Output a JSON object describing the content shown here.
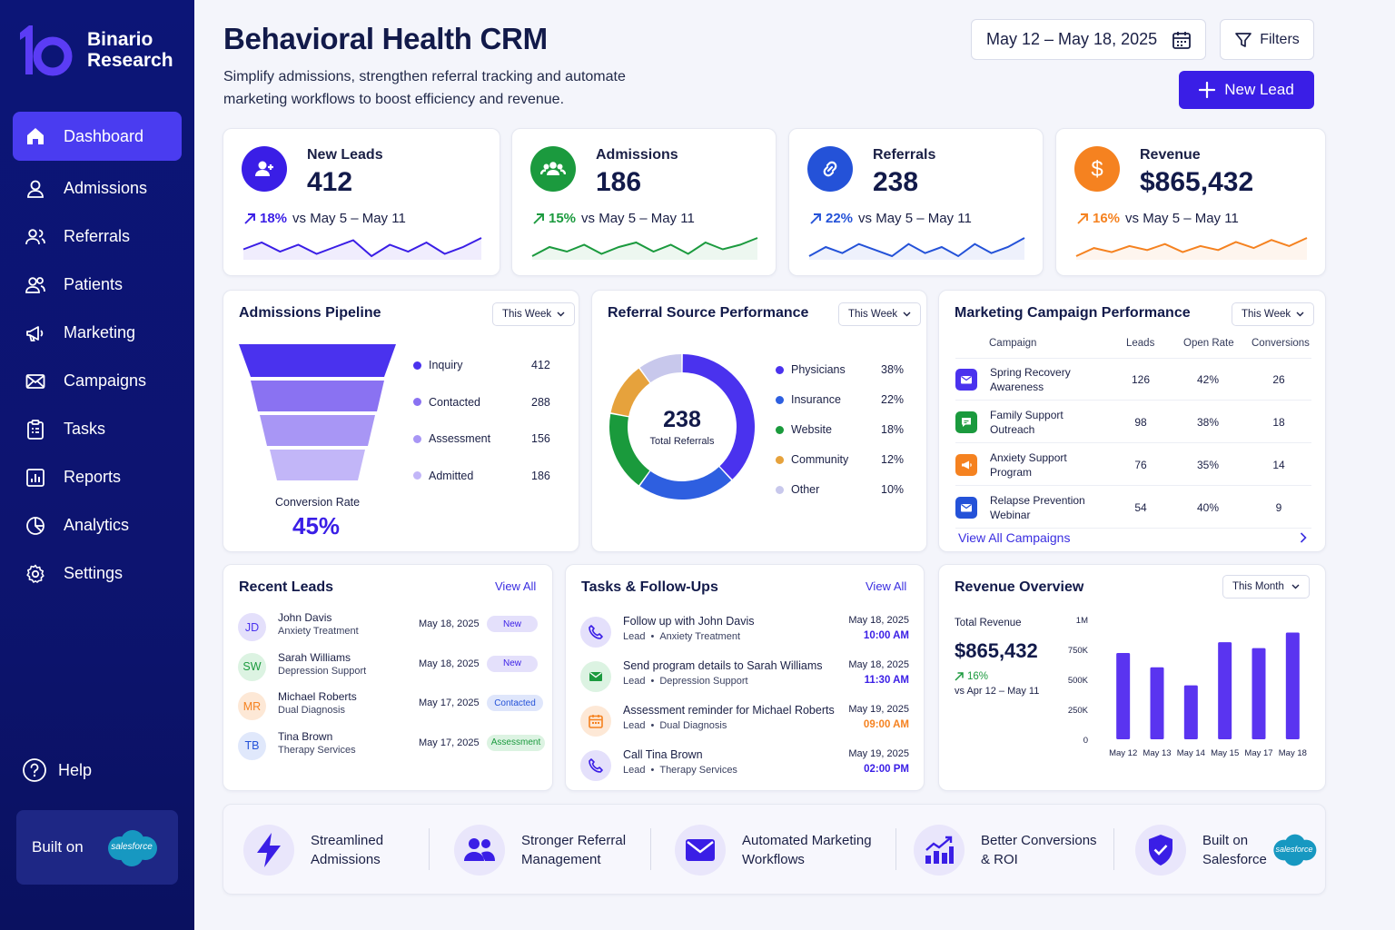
{
  "brand": {
    "name_line1": "Binario",
    "name_line2": "Research"
  },
  "sidebar": {
    "items": [
      {
        "label": "Dashboard",
        "icon": "home-icon",
        "active": true
      },
      {
        "label": "Admissions",
        "icon": "user-icon"
      },
      {
        "label": "Referrals",
        "icon": "referral-users-icon"
      },
      {
        "label": "Patients",
        "icon": "patients-icon"
      },
      {
        "label": "Marketing",
        "icon": "megaphone-icon"
      },
      {
        "label": "Campaigns",
        "icon": "mail-icon"
      },
      {
        "label": "Tasks",
        "icon": "clipboard-icon"
      },
      {
        "label": "Reports",
        "icon": "report-chart-icon"
      },
      {
        "label": "Analytics",
        "icon": "pie-chart-icon"
      },
      {
        "label": "Settings",
        "icon": "gear-icon"
      }
    ],
    "help_label": "Help",
    "built_on": "Built on",
    "salesforce_text": "salesforce"
  },
  "header": {
    "title": "Behavioral Health CRM",
    "subtitle": "Simplify admissions, strengthen referral tracking and automate marketing workflows to boost efficiency and revenue.",
    "date_range": "May 12 – May 18, 2025",
    "filters_label": "Filters",
    "new_lead_label": "New Lead"
  },
  "kpis": [
    {
      "label": "New Leads",
      "value": "412",
      "pct": "18%",
      "compare": "vs May 5 – May 11",
      "color": "#3a1ee6",
      "icon": "user-plus-icon",
      "spark": [
        10,
        13,
        9,
        12,
        8,
        11,
        14,
        7,
        12,
        9,
        13,
        8,
        11,
        15
      ]
    },
    {
      "label": "Admissions",
      "value": "186",
      "pct": "15%",
      "compare": "vs May 5 – May 11",
      "color": "#1b9a3e",
      "icon": "group-icon",
      "spark": [
        8,
        12,
        10,
        13,
        9,
        12,
        14,
        10,
        13,
        9,
        14,
        11,
        13,
        16
      ]
    },
    {
      "label": "Referrals",
      "value": "238",
      "pct": "22%",
      "compare": "vs May 5 – May 11",
      "color": "#2452d8",
      "icon": "link-icon",
      "spark": [
        9,
        12,
        10,
        13,
        11,
        9,
        13,
        10,
        12,
        9,
        13,
        10,
        12,
        15
      ]
    },
    {
      "label": "Revenue",
      "value": "$865,432",
      "pct": "16%",
      "compare": "vs May 5 – May 11",
      "color": "#f58220",
      "icon": "dollar-icon",
      "spark": [
        8,
        12,
        10,
        13,
        11,
        14,
        10,
        13,
        11,
        15,
        12,
        16,
        13,
        17
      ]
    }
  ],
  "pipeline": {
    "title": "Admissions Pipeline",
    "period": "This Week",
    "stages": [
      {
        "label": "Inquiry",
        "value": "412",
        "color": "#4a32ee"
      },
      {
        "label": "Contacted",
        "value": "288",
        "color": "#8a72f2"
      },
      {
        "label": "Assessment",
        "value": "156",
        "color": "#a896f5"
      },
      {
        "label": "Admitted",
        "value": "186",
        "color": "#c2b6f8"
      }
    ],
    "conversion_label": "Conversion Rate",
    "conversion_value": "45%"
  },
  "referral_sources": {
    "title": "Referral Source Performance",
    "period": "This Week",
    "total": "238",
    "total_label": "Total Referrals"
  },
  "chart_data": [
    {
      "type": "pie",
      "title": "Referral Source Performance",
      "categories": [
        "Physicians",
        "Insurance",
        "Website",
        "Community",
        "Other"
      ],
      "values": [
        38,
        22,
        18,
        12,
        10
      ],
      "labels": [
        "38%",
        "22%",
        "18%",
        "12%",
        "10%"
      ],
      "colors": [
        "#4a32ee",
        "#2e5fe0",
        "#1a9a3c",
        "#e6a23c",
        "#c8c8ec"
      ]
    },
    {
      "type": "bar",
      "title": "Revenue Overview",
      "categories": [
        "May 12",
        "May 13",
        "May 14",
        "May 15",
        "May 17",
        "May 18"
      ],
      "values": [
        720000,
        600000,
        450000,
        810000,
        760000,
        890000
      ],
      "ylim": [
        0,
        1000000
      ],
      "yticks": [
        "0",
        "250K",
        "500K",
        "750K",
        "1M"
      ]
    }
  ],
  "campaigns": {
    "title": "Marketing Campaign Performance",
    "period": "This Week",
    "headers": {
      "campaign": "Campaign",
      "leads": "Leads",
      "open_rate": "Open Rate",
      "conversions": "Conversions"
    },
    "rows": [
      {
        "name": "Spring Recovery Awareness",
        "leads": "126",
        "open_rate": "42%",
        "conversions": "26",
        "color": "#4a32ee",
        "icon": "mail-icon"
      },
      {
        "name": "Family Support Outreach",
        "leads": "98",
        "open_rate": "38%",
        "conversions": "18",
        "color": "#1b9a3e",
        "icon": "chat-icon"
      },
      {
        "name": "Anxiety Support Program",
        "leads": "76",
        "open_rate": "35%",
        "conversions": "14",
        "color": "#f58220",
        "icon": "megaphone-icon"
      },
      {
        "name": "Relapse Prevention Webinar",
        "leads": "54",
        "open_rate": "40%",
        "conversions": "9",
        "color": "#2452d8",
        "icon": "mail-icon"
      }
    ],
    "view_all": "View All Campaigns"
  },
  "recent_leads": {
    "title": "Recent Leads",
    "view_all": "View All",
    "rows": [
      {
        "initials": "JD",
        "name": "John Davis",
        "sub": "Anxiety Treatment",
        "date": "May 18, 2025",
        "status": "New",
        "av_bg": "#e4e0fb",
        "av_fg": "#4a32ee",
        "badge_bg": "#e4e0fb",
        "badge_fg": "#3a1ee6"
      },
      {
        "initials": "SW",
        "name": "Sarah Williams",
        "sub": "Depression Support",
        "date": "May 18, 2025",
        "status": "New",
        "av_bg": "#dcf3e2",
        "av_fg": "#1b9a3e",
        "badge_bg": "#e4e0fb",
        "badge_fg": "#3a1ee6"
      },
      {
        "initials": "MR",
        "name": "Michael Roberts",
        "sub": "Dual Diagnosis",
        "date": "May 17, 2025",
        "status": "Contacted",
        "av_bg": "#fde8d6",
        "av_fg": "#f58220",
        "badge_bg": "#dfe6fb",
        "badge_fg": "#2452d8"
      },
      {
        "initials": "TB",
        "name": "Tina Brown",
        "sub": "Therapy Services",
        "date": "May 17, 2025",
        "status": "Assessment",
        "av_bg": "#e0e8fb",
        "av_fg": "#2452d8",
        "badge_bg": "#dcf3e2",
        "badge_fg": "#1b9a3e"
      }
    ]
  },
  "tasks": {
    "title": "Tasks & Follow-Ups",
    "view_all": "View All",
    "rows": [
      {
        "title": "Follow up with John Davis",
        "type": "Lead",
        "sub": "Anxiety Treatment",
        "date": "May 18, 2025",
        "time": "10:00 AM",
        "icon": "phone-icon",
        "bg": "#e4e0fb",
        "fg": "#3a1ee6",
        "tc": "#3a1ee6"
      },
      {
        "title": "Send program details to Sarah Williams",
        "type": "Lead",
        "sub": "Depression Support",
        "date": "May 18, 2025",
        "time": "11:30 AM",
        "icon": "mail-icon",
        "bg": "#dcf3e2",
        "fg": "#1b9a3e",
        "tc": "#3a1ee6"
      },
      {
        "title": "Assessment reminder for Michael Roberts",
        "type": "Lead",
        "sub": "Dual Diagnosis",
        "date": "May 19, 2025",
        "time": "09:00 AM",
        "icon": "calendar-icon",
        "bg": "#fde8d6",
        "fg": "#f58220",
        "tc": "#f58220"
      },
      {
        "title": "Call Tina Brown",
        "type": "Lead",
        "sub": "Therapy Services",
        "date": "May 19, 2025",
        "time": "02:00 PM",
        "icon": "phone-icon",
        "bg": "#e4e0fb",
        "fg": "#3a1ee6",
        "tc": "#3a1ee6"
      }
    ]
  },
  "revenue": {
    "title": "Revenue Overview",
    "period": "This Month",
    "total_label": "Total Revenue",
    "total_value": "$865,432",
    "pct": "16%",
    "compare": "vs Apr 12 – May 11"
  },
  "features": [
    {
      "line1": "Streamlined",
      "line2": "Admissions",
      "icon": "lightning-icon"
    },
    {
      "line1": "Stronger Referral",
      "line2": "Management",
      "icon": "users-icon"
    },
    {
      "line1": "Automated Marketing",
      "line2": "Workflows",
      "icon": "envelope-icon"
    },
    {
      "line1": "Better Conversions",
      "line2": "& ROI",
      "icon": "growth-chart-icon"
    },
    {
      "line1": "Built on",
      "line2": "Salesforce",
      "icon": "shield-check-icon"
    }
  ]
}
